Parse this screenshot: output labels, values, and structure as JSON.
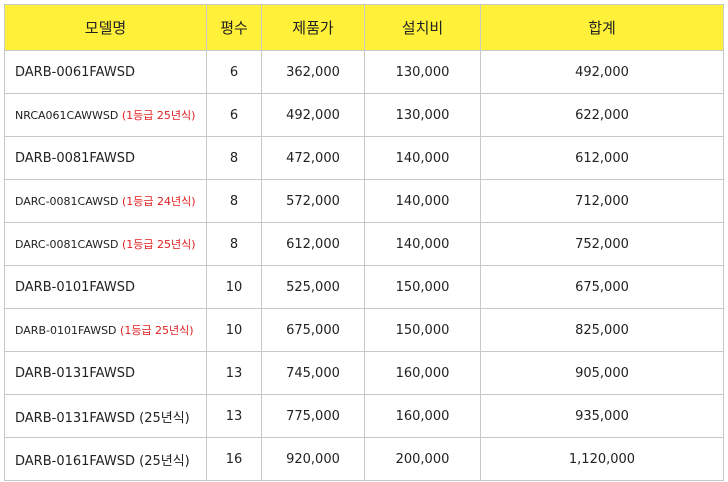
{
  "colors": {
    "header_bg": "#fff13a",
    "border": "#c8c8c8",
    "note": "#e02020"
  },
  "table": {
    "headers": [
      "모델명",
      "평수",
      "제품가",
      "설치비",
      "합계"
    ],
    "rows": [
      {
        "model": "DARB-0061FAWSD",
        "note": "",
        "small": false,
        "pyeong": "6",
        "price": "362,000",
        "install": "130,000",
        "total": "492,000"
      },
      {
        "model": "NRCA061CAWWSD",
        "note": "(1등급 25년식)",
        "small": true,
        "pyeong": "6",
        "price": "492,000",
        "install": "130,000",
        "total": "622,000"
      },
      {
        "model": "DARB-0081FAWSD",
        "note": "",
        "small": false,
        "pyeong": "8",
        "price": "472,000",
        "install": "140,000",
        "total": "612,000"
      },
      {
        "model": "DARC-0081CAWSD",
        "note": "(1등급 24년식)",
        "small": true,
        "pyeong": "8",
        "price": "572,000",
        "install": "140,000",
        "total": "712,000"
      },
      {
        "model": "DARC-0081CAWSD",
        "note": "(1등급 25년식)",
        "small": true,
        "pyeong": "8",
        "price": "612,000",
        "install": "140,000",
        "total": "752,000"
      },
      {
        "model": "DARB-0101FAWSD",
        "note": "",
        "small": false,
        "pyeong": "10",
        "price": "525,000",
        "install": "150,000",
        "total": "675,000"
      },
      {
        "model": "DARB-0101FAWSD",
        "note": "(1등급 25년식)",
        "small": true,
        "pyeong": "10",
        "price": "675,000",
        "install": "150,000",
        "total": "825,000"
      },
      {
        "model": "DARB-0131FAWSD",
        "note": "",
        "small": false,
        "pyeong": "13",
        "price": "745,000",
        "install": "160,000",
        "total": "905,000"
      },
      {
        "model": "DARB-0131FAWSD (25년식)",
        "note": "",
        "small": false,
        "pyeong": "13",
        "price": "775,000",
        "install": "160,000",
        "total": "935,000"
      },
      {
        "model": "DARB-0161FAWSD (25년식)",
        "note": "",
        "small": false,
        "pyeong": "16",
        "price": "920,000",
        "install": "200,000",
        "total": "1,120,000"
      }
    ]
  }
}
